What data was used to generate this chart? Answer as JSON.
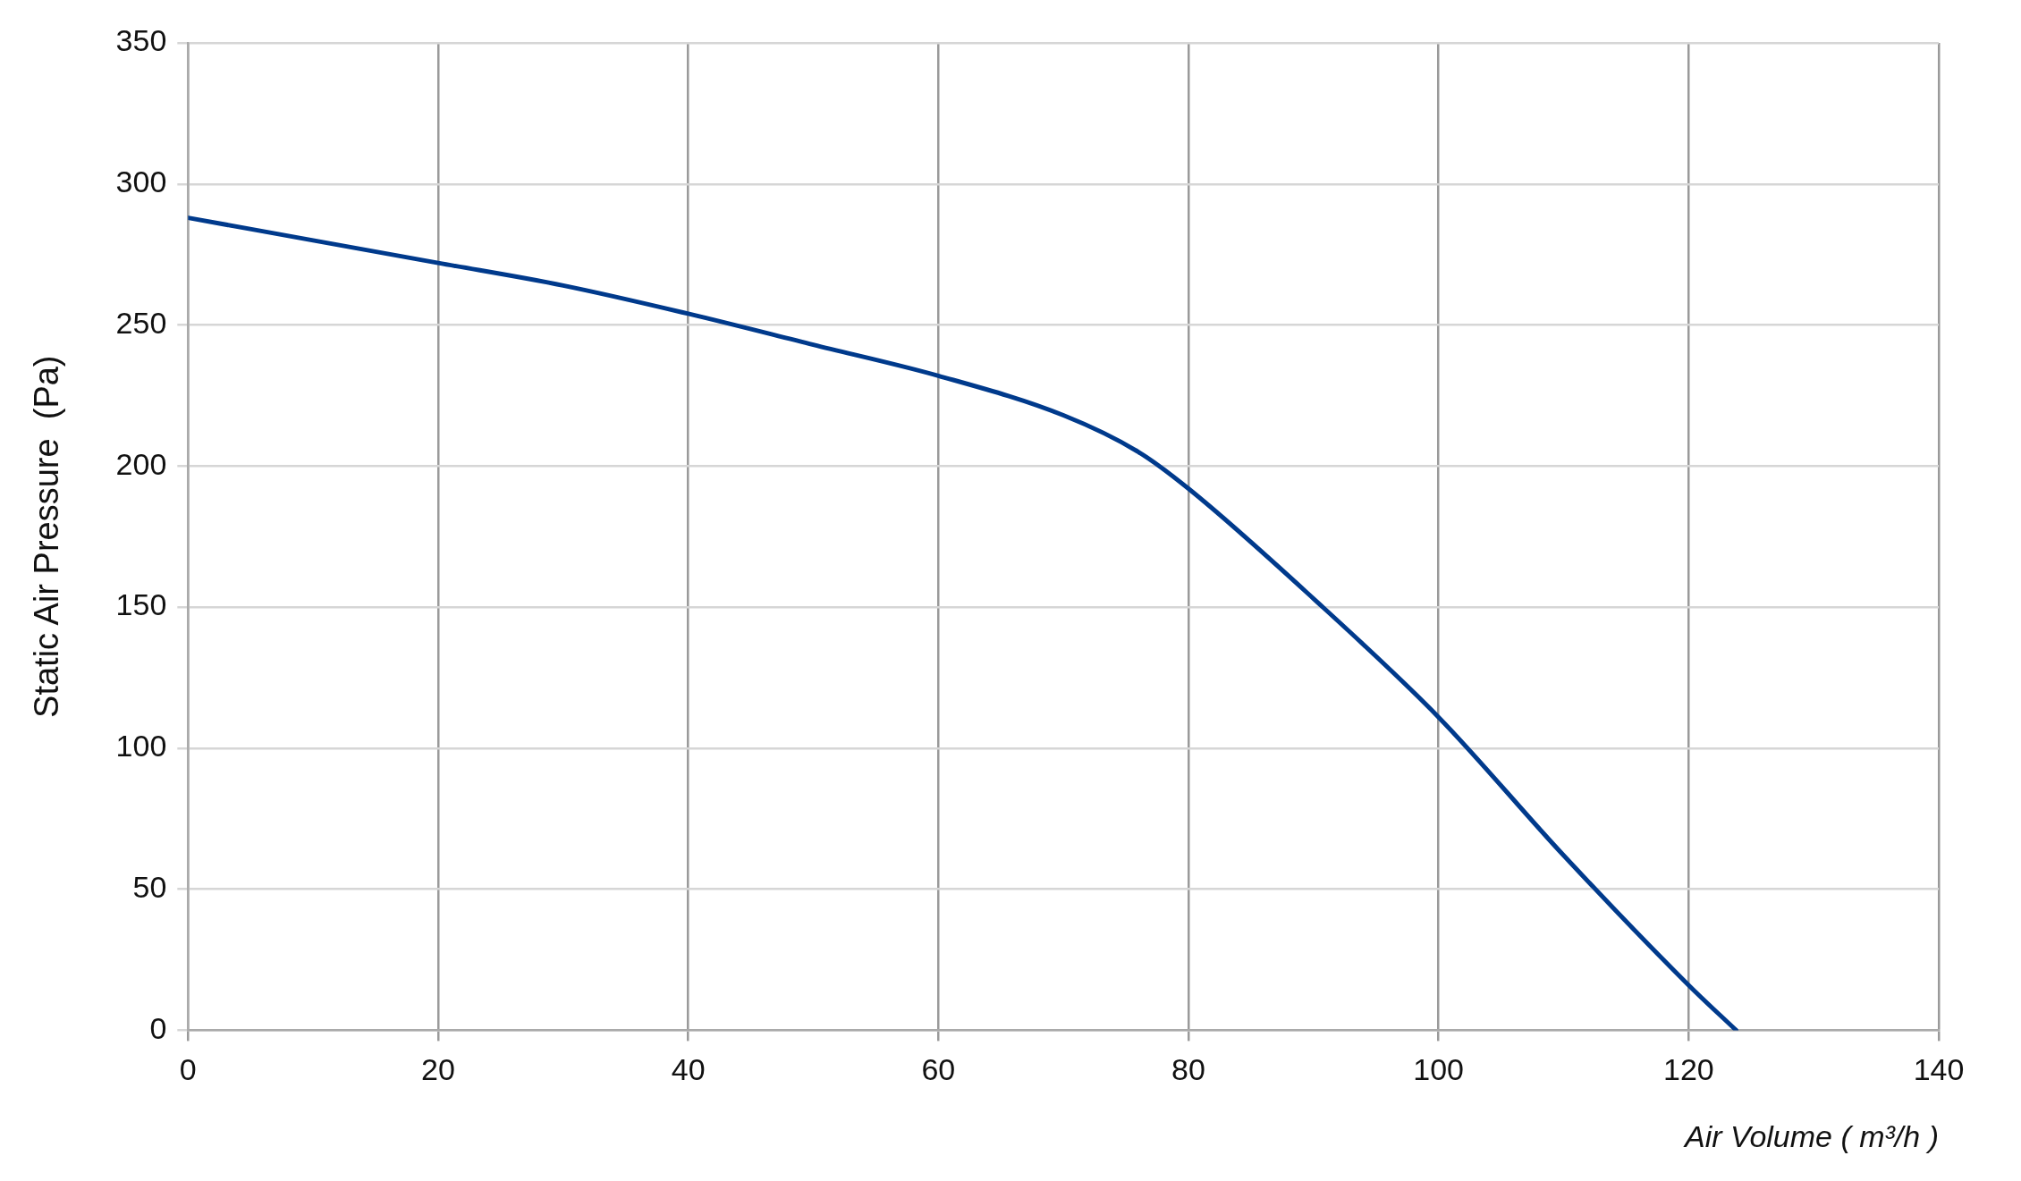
{
  "chart_data": {
    "type": "line",
    "xlabel": "Air Volume ( m³/h )",
    "ylabel": "Static Air Pressure  (Pa)",
    "x": [
      0,
      10,
      20,
      30,
      40,
      50,
      60,
      70,
      76,
      80,
      90,
      100,
      110,
      120,
      123.8
    ],
    "series": [
      {
        "color": "#003a8c",
        "values": [
          288,
          280,
          272,
          264,
          254,
          243,
          232,
          218,
          205,
          192,
          153,
          111,
          62,
          16,
          0
        ]
      }
    ],
    "xlim": [
      0,
      140
    ],
    "xticks": [
      0,
      20,
      40,
      60,
      80,
      100,
      120,
      140
    ],
    "ylim": [
      0,
      350
    ],
    "yticks": [
      0,
      50,
      100,
      150,
      200,
      250,
      300,
      350
    ],
    "grid": true,
    "legend": false,
    "marker": "none",
    "line_style": "solid"
  }
}
